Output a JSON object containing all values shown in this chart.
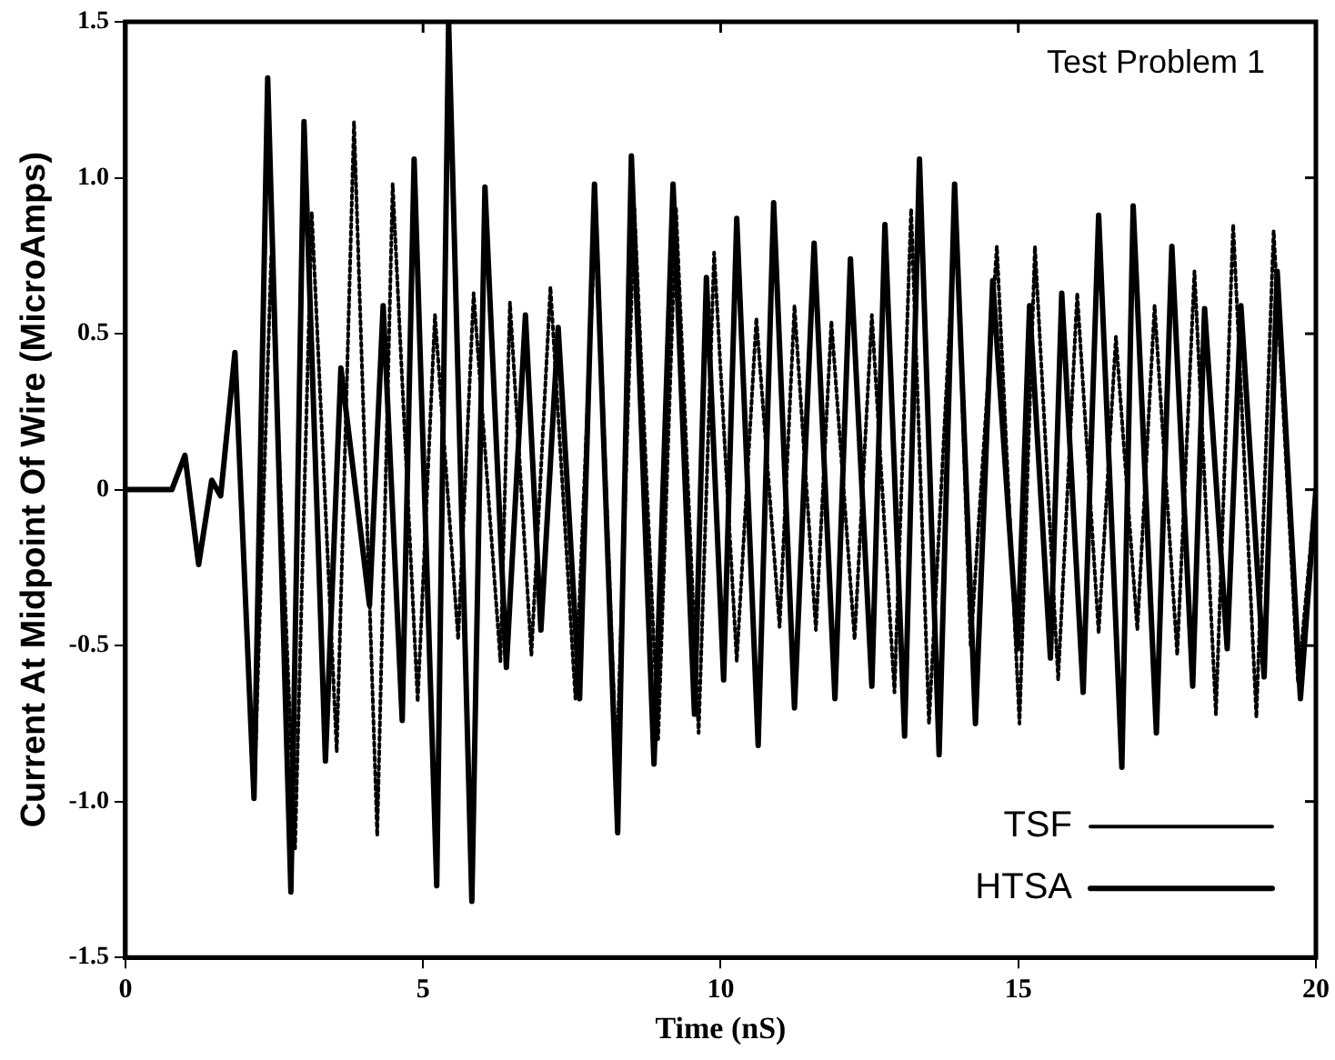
{
  "chart_data": {
    "type": "line",
    "title": "Test Problem 1",
    "xlabel": "Time (nS)",
    "ylabel": "Current At Midpoint Of Wire (MicroAmps)",
    "xlim": [
      0,
      20
    ],
    "xticks": [
      0,
      5,
      10,
      15,
      20
    ],
    "ylim": [
      -1.5,
      1.5
    ],
    "yticks": [
      {
        "value": -1.5,
        "label": "-1.5"
      },
      {
        "value": -1,
        "label": "-1.0"
      },
      {
        "value": -0.5,
        "label": "-0.5"
      },
      0,
      {
        "value": 0.5,
        "label": "0.5"
      },
      {
        "value": 1,
        "label": "1.0"
      },
      {
        "value": 1.5,
        "label": "1.5"
      }
    ],
    "grid": false,
    "legend": "bottom right",
    "marker": "none",
    "series": [
      {
        "name": "TSF",
        "color": "#000000",
        "line_style": "dotted",
        "x": [
          0,
          0.78,
          1.0,
          1.23,
          1.45,
          1.6,
          1.84,
          2.16,
          2.45,
          2.85,
          3.13,
          3.55,
          3.84,
          4.23,
          4.49,
          4.91,
          5.2,
          5.59,
          5.85,
          6.3,
          6.46,
          6.82,
          7.14,
          7.56,
          7.9,
          8.25,
          8.55,
          8.95,
          9.25,
          9.63,
          9.89,
          10.27,
          10.6,
          10.99,
          11.24,
          11.6,
          11.86,
          12.25,
          12.54,
          12.92,
          13.2,
          13.5,
          13.95,
          14.2,
          14.64,
          15.02,
          15.28,
          15.67,
          15.99,
          16.35,
          16.64,
          17.0,
          17.29,
          17.67,
          17.96,
          18.32,
          18.61,
          19.0,
          19.29,
          19.7,
          20
        ],
        "values": [
          0,
          0,
          0.11,
          -0.24,
          0.03,
          -0.02,
          0.44,
          -0.99,
          0.75,
          -1.15,
          0.89,
          -0.84,
          1.18,
          -1.11,
          0.98,
          -0.68,
          0.56,
          -0.48,
          0.63,
          -0.55,
          0.6,
          -0.53,
          0.65,
          -0.67,
          0.9,
          -0.9,
          0.9,
          -0.8,
          0.9,
          -0.78,
          0.76,
          -0.55,
          0.55,
          -0.44,
          0.59,
          -0.45,
          0.54,
          -0.48,
          0.56,
          -0.65,
          0.9,
          -0.75,
          0.9,
          -0.5,
          0.78,
          -0.75,
          0.78,
          -0.61,
          0.63,
          -0.46,
          0.49,
          -0.45,
          0.59,
          -0.53,
          0.7,
          -0.72,
          0.85,
          -0.73,
          0.83,
          -0.62,
          0
        ]
      },
      {
        "name": "HTSA",
        "color": "#000000",
        "line_style": "solid",
        "x": [
          0,
          0.78,
          1.0,
          1.23,
          1.45,
          1.6,
          1.84,
          2.16,
          2.39,
          2.78,
          3.0,
          3.36,
          3.62,
          4.1,
          4.33,
          4.65,
          4.85,
          5.23,
          5.43,
          5.82,
          6.04,
          6.4,
          6.72,
          6.98,
          7.27,
          7.63,
          7.88,
          8.27,
          8.5,
          8.88,
          9.2,
          9.56,
          9.76,
          10.05,
          10.27,
          10.63,
          10.89,
          11.24,
          11.57,
          11.92,
          12.18,
          12.54,
          12.76,
          13.09,
          13.34,
          13.67,
          13.93,
          14.28,
          14.57,
          14.99,
          15.19,
          15.54,
          15.73,
          16.09,
          16.35,
          16.74,
          16.93,
          17.32,
          17.58,
          17.93,
          18.13,
          18.51,
          18.74,
          19.13,
          19.35,
          19.74,
          20
        ],
        "values": [
          0,
          0,
          0.11,
          -0.24,
          0.03,
          -0.02,
          0.44,
          -0.99,
          1.32,
          -1.29,
          1.18,
          -0.87,
          0.39,
          -0.37,
          0.59,
          -0.74,
          1.06,
          -1.27,
          1.5,
          -1.32,
          0.97,
          -0.57,
          0.56,
          -0.45,
          0.52,
          -0.67,
          0.98,
          -1.1,
          1.07,
          -0.88,
          0.98,
          -0.72,
          0.68,
          -0.61,
          0.87,
          -0.82,
          0.92,
          -0.7,
          0.79,
          -0.67,
          0.74,
          -0.63,
          0.85,
          -0.79,
          1.06,
          -0.85,
          0.98,
          -0.75,
          0.67,
          -0.51,
          0.59,
          -0.54,
          0.63,
          -0.65,
          0.88,
          -0.89,
          0.91,
          -0.78,
          0.78,
          -0.63,
          0.58,
          -0.51,
          0.59,
          -0.6,
          0.7,
          -0.67,
          0
        ]
      }
    ]
  }
}
